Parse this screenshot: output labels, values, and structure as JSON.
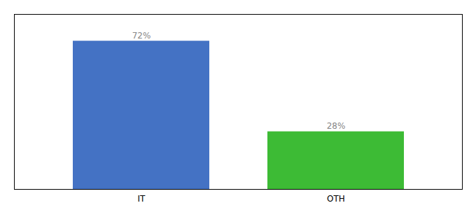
{
  "chart_data": {
    "type": "bar",
    "categories": [
      "IT",
      "OTH"
    ],
    "values": [
      72,
      28
    ],
    "value_labels": [
      "72%",
      "28%"
    ],
    "colors": [
      "#4472c4",
      "#3dbb35"
    ],
    "ylim": [
      0,
      85
    ],
    "tick_labels": "x",
    "data_labels": true
  }
}
